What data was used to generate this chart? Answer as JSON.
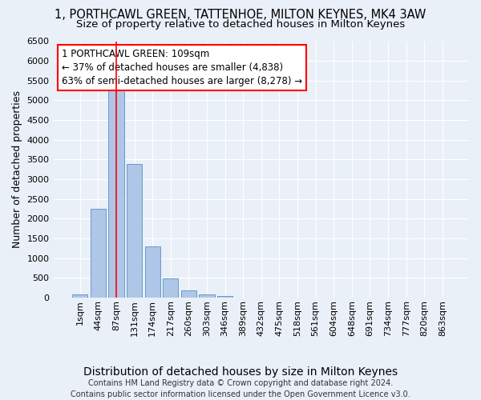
{
  "title": "1, PORTHCAWL GREEN, TATTENHOE, MILTON KEYNES, MK4 3AW",
  "subtitle": "Size of property relative to detached houses in Milton Keynes",
  "xlabel": "Distribution of detached houses by size in Milton Keynes",
  "ylabel": "Number of detached properties",
  "footer_line1": "Contains HM Land Registry data © Crown copyright and database right 2024.",
  "footer_line2": "Contains public sector information licensed under the Open Government Licence v3.0.",
  "bar_labels": [
    "1sqm",
    "44sqm",
    "87sqm",
    "131sqm",
    "174sqm",
    "217sqm",
    "260sqm",
    "303sqm",
    "346sqm",
    "389sqm",
    "432sqm",
    "475sqm",
    "518sqm",
    "561sqm",
    "604sqm",
    "648sqm",
    "691sqm",
    "734sqm",
    "777sqm",
    "820sqm",
    "863sqm"
  ],
  "bar_values": [
    75,
    2260,
    5430,
    3380,
    1300,
    490,
    185,
    75,
    40,
    0,
    0,
    0,
    0,
    0,
    0,
    0,
    0,
    0,
    0,
    0,
    0
  ],
  "bar_color": "#aec6e8",
  "bar_edge_color": "#5a8fc0",
  "vline_x": 2,
  "vline_color": "red",
  "annotation_box_text": "1 PORTHCAWL GREEN: 109sqm\n← 37% of detached houses are smaller (4,838)\n63% of semi-detached houses are larger (8,278) →",
  "ylim": [
    0,
    6500
  ],
  "yticks": [
    0,
    500,
    1000,
    1500,
    2000,
    2500,
    3000,
    3500,
    4000,
    4500,
    5000,
    5500,
    6000,
    6500
  ],
  "bg_color": "#eaf0f8",
  "grid_color": "white",
  "title_fontsize": 10.5,
  "subtitle_fontsize": 9.5,
  "xlabel_fontsize": 10,
  "ylabel_fontsize": 9,
  "tick_fontsize": 8,
  "annotation_fontsize": 8.5,
  "footer_fontsize": 7
}
